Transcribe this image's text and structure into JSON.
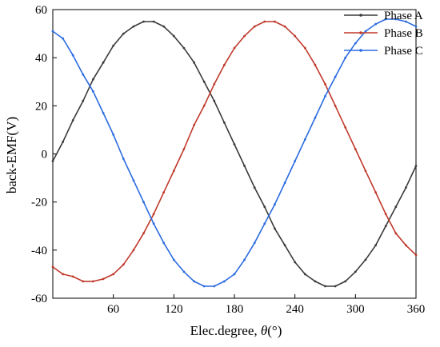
{
  "chart_data": {
    "type": "line",
    "title": "",
    "xlabel": "Elec.degree, ",
    "xlabel_symbol": "θ",
    "xlabel_unit": "(°)",
    "ylabel": "back-EMF(V)",
    "xlim": [
      0,
      360
    ],
    "ylim": [
      -60,
      60
    ],
    "x_ticks": [
      60,
      120,
      180,
      240,
      300,
      360
    ],
    "y_ticks": [
      60,
      40,
      20,
      0,
      -20,
      -40,
      -60
    ],
    "grid": false,
    "legend_position": "top-right",
    "series": [
      {
        "name": "Phase A",
        "color": "#3a3a3a",
        "x": [
          0,
          10,
          20,
          30,
          40,
          50,
          60,
          70,
          80,
          90,
          100,
          110,
          120,
          130,
          140,
          150,
          160,
          170,
          180,
          190,
          200,
          210,
          220,
          230,
          240,
          250,
          260,
          270,
          280,
          290,
          300,
          310,
          320,
          330,
          340,
          350,
          360
        ],
        "y": [
          -3,
          5,
          14,
          22,
          31,
          38,
          45,
          50,
          53,
          55,
          55,
          53,
          49,
          44,
          38,
          30,
          22,
          13,
          4,
          -5,
          -14,
          -22,
          -31,
          -38,
          -45,
          -50,
          -53,
          -55,
          -55,
          -53,
          -49,
          -44,
          -38,
          -30,
          -22,
          -14,
          -5
        ]
      },
      {
        "name": "Phase B",
        "color": "#c0392b",
        "x": [
          0,
          10,
          20,
          30,
          40,
          50,
          60,
          70,
          80,
          90,
          100,
          110,
          120,
          130,
          140,
          150,
          160,
          170,
          180,
          190,
          200,
          210,
          220,
          230,
          240,
          250,
          260,
          270,
          280,
          290,
          300,
          310,
          320,
          330,
          340,
          350,
          360
        ],
        "y": [
          -47,
          -50,
          -51,
          -53,
          -53,
          -52,
          -50,
          -46,
          -40,
          -33,
          -25,
          -16,
          -7,
          2,
          12,
          20,
          29,
          37,
          44,
          49,
          53,
          55,
          55,
          53,
          49,
          44,
          37,
          29,
          20,
          11,
          2,
          -7,
          -16,
          -25,
          -33,
          -38,
          -42
        ]
      },
      {
        "name": "Phase C",
        "color": "#2b6be0",
        "x": [
          0,
          10,
          20,
          30,
          40,
          50,
          60,
          70,
          80,
          90,
          100,
          110,
          120,
          130,
          140,
          150,
          160,
          170,
          180,
          190,
          200,
          210,
          220,
          230,
          240,
          250,
          260,
          270,
          280,
          290,
          300,
          310,
          320,
          330,
          340,
          350,
          360
        ],
        "y": [
          51,
          48,
          41,
          33,
          26,
          17,
          8,
          -2,
          -11,
          -20,
          -29,
          -37,
          -44,
          -49,
          -53,
          -55,
          -55,
          -53,
          -50,
          -44,
          -37,
          -29,
          -21,
          -12,
          -3,
          6,
          15,
          24,
          32,
          40,
          46,
          51,
          54,
          56,
          56,
          55,
          53
        ]
      }
    ]
  }
}
